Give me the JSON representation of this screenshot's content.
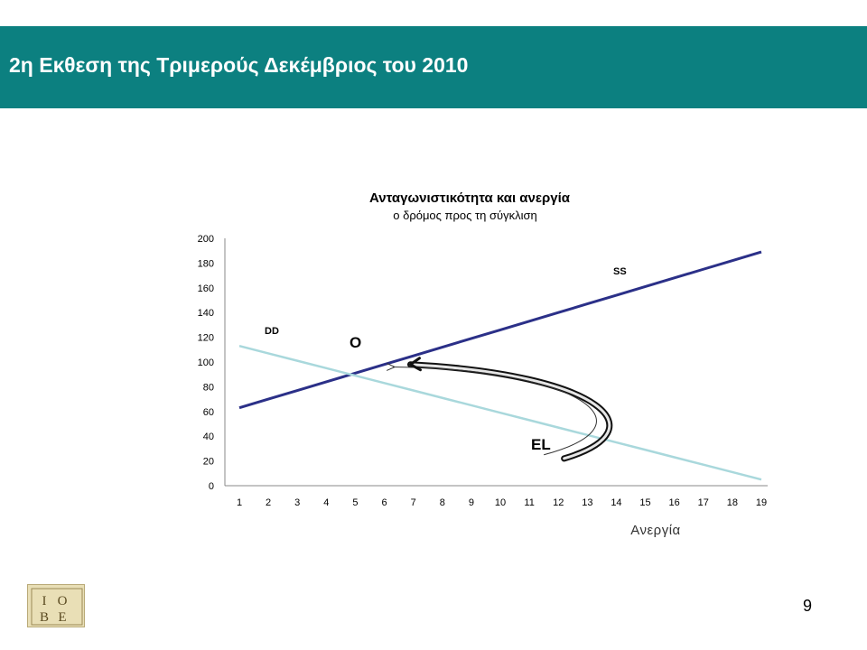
{
  "header": {
    "title": "2η Εκθεση της Τριμερούς Δεκέμβριος του 2010"
  },
  "footer": {
    "page_number": "9",
    "logo_text": "IOBE"
  },
  "colors": {
    "header_bg": "#0c8080",
    "ss_line": "#2b3088",
    "dd_line": "#a9d8dc",
    "arrow": "#111111"
  },
  "chart_data": {
    "type": "line",
    "title": "Ανταγωνιστικότητα και ανεργία",
    "subtitle": "ο δρόμος προς τη σύγκλιση",
    "xlabel": "Ανεργία",
    "ylabel": "",
    "x": [
      1,
      2,
      3,
      4,
      5,
      6,
      7,
      8,
      9,
      10,
      11,
      12,
      13,
      14,
      15,
      16,
      17,
      18,
      19
    ],
    "xticks": [
      "1",
      "2",
      "3",
      "4",
      "5",
      "6",
      "7",
      "8",
      "9",
      "10",
      "11",
      "12",
      "13",
      "14",
      "15",
      "16",
      "17",
      "18",
      "19"
    ],
    "ylim": [
      0,
      200
    ],
    "yticks": [
      "0",
      "20",
      "40",
      "60",
      "80",
      "100",
      "120",
      "140",
      "160",
      "180",
      "200"
    ],
    "series": [
      {
        "name": "SS",
        "color": "#2b3088",
        "values": [
          63,
          70,
          77,
          84,
          91,
          98,
          105,
          112,
          119,
          126,
          133,
          140,
          147,
          154,
          161,
          168,
          175,
          182,
          189
        ]
      },
      {
        "name": "DD",
        "color": "#a9d8dc",
        "values": [
          113,
          107,
          101,
          95,
          89,
          83,
          77,
          71,
          65,
          59,
          53,
          47,
          41,
          35,
          29,
          23,
          17,
          11,
          5
        ]
      }
    ],
    "annotations": [
      {
        "text": "O",
        "x": 5.1,
        "y": 112
      },
      {
        "text": "EL",
        "x": 11.3,
        "y": 33
      }
    ],
    "arrow_path": [
      [
        12.2,
        22
      ],
      [
        15.5,
        45
      ],
      [
        13.5,
        90
      ],
      [
        6.9,
        98
      ]
    ],
    "grid": false,
    "legend": "none"
  }
}
